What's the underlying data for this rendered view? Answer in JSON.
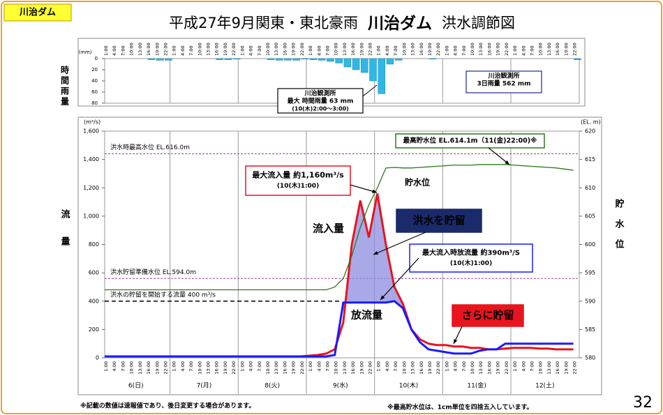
{
  "badge": "川治ダム",
  "title": {
    "prefix": "平成27年9月関東・東北豪雨",
    "dam": "川治ダム",
    "suffix": "洪水調節図"
  },
  "page_number": "32",
  "footnotes": [
    "※記載の数値は速報値であり、後日変更する場合があります。",
    "※最高貯水位は、1cm単位を四捨五入しています。"
  ],
  "chart_data": [
    {
      "type": "bar",
      "y_label": "時間雨量",
      "unit": "(mm)",
      "color": "#2fb8e6",
      "inverted": true,
      "categories": [
        "1:00",
        "4:00",
        "7:00",
        "10:00",
        "13:00",
        "16:00",
        "19:00",
        "22:00",
        "1:00",
        "4:00",
        "7:00",
        "10:00",
        "13:00",
        "16:00",
        "19:00",
        "22:00",
        "1:00",
        "4:00",
        "7:00",
        "10:00",
        "13:00",
        "16:00",
        "19:00",
        "22:00",
        "1:00",
        "4:00",
        "7:00",
        "10:00",
        "13:00",
        "16:00",
        "19:00",
        "22:00",
        "1:00",
        "4:00",
        "7:00",
        "10:00",
        "13:00",
        "16:00",
        "19:00",
        "22:00",
        "1:00",
        "4:00",
        "7:00",
        "10:00",
        "13:00",
        "16:00",
        "19:00",
        "22:00",
        "1:00",
        "4:00",
        "7:00",
        "10:00",
        "13:00",
        "16:00",
        "19:00",
        "22:00"
      ],
      "values": [
        0,
        0,
        0,
        0,
        0,
        2,
        3,
        3,
        0,
        0,
        0,
        0,
        0,
        2,
        2,
        1,
        0,
        0,
        0,
        2,
        3,
        3,
        3,
        1,
        2,
        3,
        5,
        8,
        15,
        20,
        25,
        40,
        63,
        10,
        3,
        0,
        0,
        0,
        1,
        0,
        0,
        0,
        0,
        0,
        0,
        0,
        0,
        0,
        0,
        0,
        0,
        0,
        0,
        0,
        0,
        2
      ],
      "ylim": [
        0,
        80
      ],
      "yticks": [
        0,
        20,
        40,
        60,
        80
      ],
      "annotations": [
        {
          "lines": [
            "川治観測所",
            "最大 時間雨量 63 mm",
            "(10(木)2:00〜3:00)"
          ]
        },
        {
          "lines": [
            "川治観測所",
            "3日雨量 562 mm"
          ]
        }
      ]
    },
    {
      "type": "line",
      "y_label": "流量",
      "y2_label": "貯水位",
      "y_unit": "(m³/s)",
      "y2_unit": "(EL. m)",
      "categories": [
        "1:00",
        "4:00",
        "7:00",
        "10:00",
        "13:00",
        "16:00",
        "19:00",
        "22:00",
        "1:00",
        "4:00",
        "7:00",
        "10:00",
        "13:00",
        "16:00",
        "19:00",
        "22:00",
        "1:00",
        "4:00",
        "7:00",
        "10:00",
        "13:00",
        "16:00",
        "19:00",
        "22:00",
        "1:00",
        "4:00",
        "7:00",
        "10:00",
        "13:00",
        "16:00",
        "19:00",
        "22:00",
        "1:00",
        "4:00",
        "7:00",
        "10:00",
        "13:00",
        "16:00",
        "19:00",
        "22:00",
        "1:00",
        "4:00",
        "7:00",
        "10:00",
        "13:00",
        "16:00",
        "19:00",
        "22:00",
        "1:00",
        "4:00",
        "7:00",
        "10:00",
        "13:00",
        "16:00",
        "19:00",
        "22:00"
      ],
      "days": [
        "6(日)",
        "7(月)",
        "8(火)",
        "9(水)",
        "10(木)",
        "11(金)",
        "12(土)"
      ],
      "series": [
        {
          "name": "流入量",
          "color": "#e8141e",
          "values": [
            10,
            10,
            10,
            10,
            10,
            10,
            10,
            10,
            10,
            10,
            10,
            10,
            10,
            10,
            10,
            10,
            10,
            10,
            10,
            10,
            10,
            10,
            10,
            10,
            15,
            20,
            30,
            60,
            250,
            800,
            1110,
            850,
            1160,
            800,
            500,
            380,
            200,
            130,
            100,
            90,
            90,
            80,
            80,
            70,
            70,
            60,
            60,
            65,
            70,
            70,
            70,
            65,
            65,
            60,
            60,
            60
          ]
        },
        {
          "name": "放流量",
          "color": "#1a1aff",
          "values": [
            10,
            10,
            10,
            10,
            10,
            10,
            10,
            10,
            10,
            10,
            10,
            10,
            10,
            10,
            10,
            10,
            10,
            10,
            10,
            10,
            10,
            10,
            10,
            10,
            10,
            10,
            10,
            20,
            390,
            390,
            390,
            390,
            390,
            390,
            400,
            350,
            200,
            110,
            60,
            50,
            40,
            30,
            30,
            30,
            50,
            60,
            60,
            100,
            100,
            100,
            100,
            100,
            100,
            100,
            100,
            100
          ]
        },
        {
          "name": "貯水位",
          "color": "#2a7a1a",
          "axis": "y2",
          "values": [
            592,
            592,
            592,
            592,
            592,
            592,
            592,
            592,
            592,
            592,
            592,
            592,
            592,
            592,
            592,
            592,
            592,
            592,
            592,
            592,
            592,
            592,
            592,
            592,
            592,
            592,
            592,
            592.5,
            594,
            598,
            603,
            607,
            610,
            613.5,
            613.6,
            613.5,
            613.5,
            613.6,
            613.7,
            613.8,
            613.9,
            614,
            614,
            614,
            614.1,
            614.1,
            614.1,
            614.1,
            614,
            613.9,
            613.8,
            613.7,
            613.6,
            613.5,
            613.3,
            613.1
          ]
        }
      ],
      "ylim": [
        0,
        1600
      ],
      "yticks": [
        0,
        200,
        400,
        600,
        800,
        {
          "value": 1000,
          "label": "1,000"
        },
        {
          "value": 1200,
          "label": "1,200"
        },
        {
          "value": 1400,
          "label": "1,400"
        },
        {
          "value": 1600,
          "label": "1,600"
        }
      ],
      "y2lim": [
        580,
        620
      ],
      "y2ticks": [
        580,
        585,
        590,
        595,
        600,
        605,
        610,
        615,
        620
      ],
      "reference_lines": [
        {
          "label": "洪水時最高水位 EL.616.0m",
          "value": 616,
          "axis": "y2",
          "color": "#a03ca0"
        },
        {
          "label": "洪水貯留準備水位 EL.594.0m",
          "value": 594,
          "axis": "y2",
          "color": "#a03ca0"
        },
        {
          "label": "洪水の貯留を開始する流量 400 m³/s",
          "value": 400,
          "axis": "y",
          "color": "#000000"
        }
      ],
      "annotations": [
        {
          "lines": [
            "最大流入量 約1,160m³/s",
            "(10(木)1:00)"
          ]
        },
        {
          "lines": [
            "洪水を貯留"
          ]
        },
        {
          "lines": [
            "最大流入時放流量 約390m³/S",
            "(10(木)1:00)"
          ]
        },
        {
          "lines": [
            "さらに貯留"
          ]
        },
        {
          "lines": [
            "最高貯水位 EL.614.1m（11(金)22:00)※"
          ]
        }
      ]
    }
  ]
}
